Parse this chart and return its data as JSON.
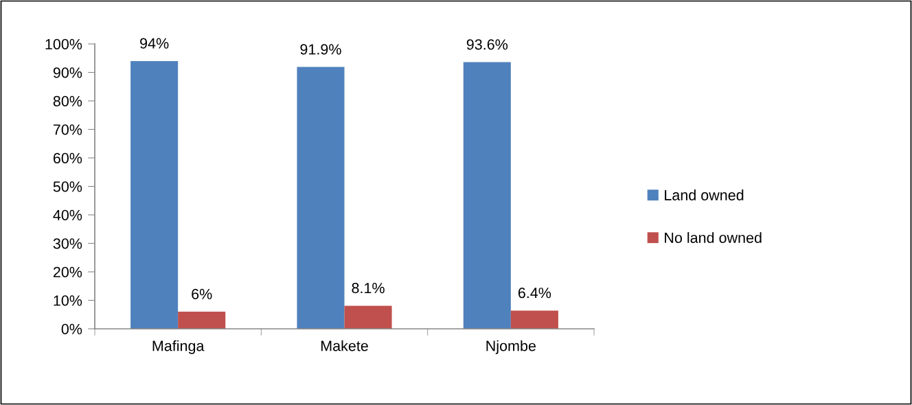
{
  "chart_data": {
    "type": "bar",
    "categories": [
      "Mafinga",
      "Makete",
      "Njombe"
    ],
    "series": [
      {
        "name": "Land owned",
        "color": "#4f81bd",
        "values": [
          94,
          91.9,
          93.6
        ],
        "value_labels": [
          "94%",
          "91.9%",
          "93.6%"
        ]
      },
      {
        "name": "No land owned",
        "color": "#c0504d",
        "values": [
          6,
          8.1,
          6.4
        ],
        "value_labels": [
          "6%",
          "8.1%",
          "6.4%"
        ]
      }
    ],
    "ylim": [
      0,
      100
    ],
    "yticks": [
      {
        "value": 0,
        "label": "0%"
      },
      {
        "value": 10,
        "label": "10%"
      },
      {
        "value": 20,
        "label": "20%"
      },
      {
        "value": 30,
        "label": "30%"
      },
      {
        "value": 40,
        "label": "40%"
      },
      {
        "value": 50,
        "label": "50%"
      },
      {
        "value": 60,
        "label": "60%"
      },
      {
        "value": 70,
        "label": "70%"
      },
      {
        "value": 80,
        "label": "80%"
      },
      {
        "value": 90,
        "label": "90%"
      },
      {
        "value": 100,
        "label": "100%"
      }
    ],
    "grid": false,
    "legend": "right"
  }
}
